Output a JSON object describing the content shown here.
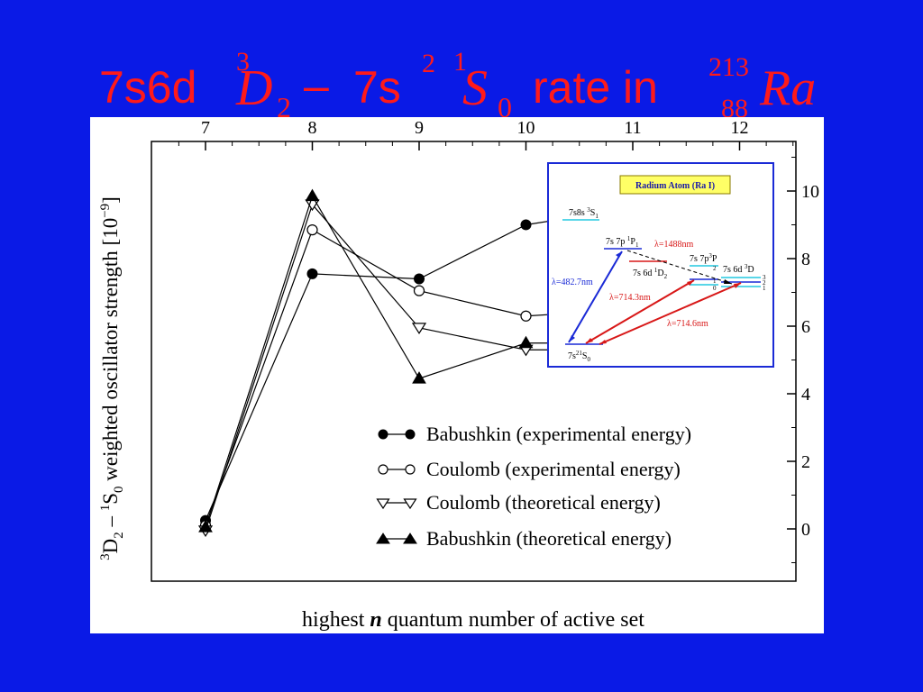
{
  "slide": {
    "title": {
      "prefix": "7s6d",
      "d_mult": "3",
      "d_letter": "D",
      "d_sub": "2",
      "dash": "–",
      "mid": "7s",
      "mid_exp": "2",
      "s_mult": "1",
      "s_letter": "S",
      "s_sub": "0",
      "rate": "rate in",
      "mass": "213",
      "atomic": "88",
      "element": "Ra"
    },
    "colors": {
      "background": "#0a1ae6",
      "title": "#ff1a1a",
      "inset_blue": "#1a2ad6",
      "inset_red": "#d81818",
      "inset_cyan": "#22c8e0",
      "inset_box": "#ffff66"
    }
  },
  "chart_data": {
    "type": "line",
    "x": [
      7,
      8,
      9,
      10,
      11,
      12
    ],
    "xlim": [
      6.5,
      12.5
    ],
    "ylim": [
      -1.5,
      11.5
    ],
    "top_ticks": [
      "7",
      "8",
      "9",
      "10",
      "11",
      "12"
    ],
    "right_ticks": [
      "0",
      "2",
      "4",
      "6",
      "8",
      "10"
    ],
    "xlabel": {
      "pre": "highest ",
      "italic": "n",
      "post": " quantum number of active set"
    },
    "ylabel": {
      "a_sup": "3",
      "a": "D",
      "a_sub": "2",
      "dash": " – ",
      "b_sup": "1",
      "b": "S",
      "b_sub": "0",
      "text": " weighted oscillator strength [10",
      "exp": "−9",
      "close": "]"
    },
    "series": [
      {
        "name": "Babushkin (experimental energy)",
        "marker": "filled-circle",
        "x": [
          7,
          8,
          9,
          10,
          11
        ],
        "values": [
          0.25,
          7.55,
          7.4,
          9.0,
          9.5
        ]
      },
      {
        "name": "Coulomb (experimental energy)",
        "marker": "open-circle",
        "x": [
          7,
          8,
          9,
          10,
          11
        ],
        "values": [
          0.1,
          8.85,
          7.05,
          6.3,
          6.5
        ]
      },
      {
        "name": "Coulomb (theoretical energy)",
        "marker": "open-triangle-down",
        "x": [
          7,
          8,
          9,
          10,
          11
        ],
        "values": [
          -0.05,
          9.6,
          5.95,
          5.3,
          5.3
        ]
      },
      {
        "name": "Babushkin (theoretical energy)",
        "marker": "filled-triangle-up",
        "x": [
          7,
          8,
          9,
          10,
          11
        ],
        "values": [
          0.05,
          9.85,
          4.45,
          5.5,
          5.5
        ]
      }
    ],
    "legend_placement": "bottom-right",
    "inset": {
      "box_title": "Radium Atom (Ra I)",
      "levels": {
        "l7s8s": {
          "a": "7s8s ",
          "sup": "3",
          "b": "S",
          "sub": "1"
        },
        "l7s7p1P": {
          "a": "7s 7p ",
          "sup": "1",
          "b": "P",
          "sub": "1"
        },
        "l7s6d1D": {
          "a": "7s 6d ",
          "sup": "1",
          "b": "D",
          "sub": "2"
        },
        "l7s7p3P": {
          "a": "7s 7p",
          "sup": "3",
          "b": "P"
        },
        "l7s6d3D": {
          "a": "7s 6d ",
          "sup": "3",
          "b": "D"
        },
        "ground": {
          "a": "7s",
          "sup": "2",
          "sup2": "1",
          "b": "S",
          "sub": "0"
        }
      },
      "j_labels": {
        "p2": "2",
        "p1": "1",
        "p0": "0",
        "d3": "3",
        "d2": "2",
        "d1": "1"
      },
      "transitions": {
        "l1488": "λ=1488nm",
        "l4827": "λ=482.7nm",
        "l7143": "λ=714.3nm",
        "l7146": "λ=714.6nm"
      }
    }
  }
}
